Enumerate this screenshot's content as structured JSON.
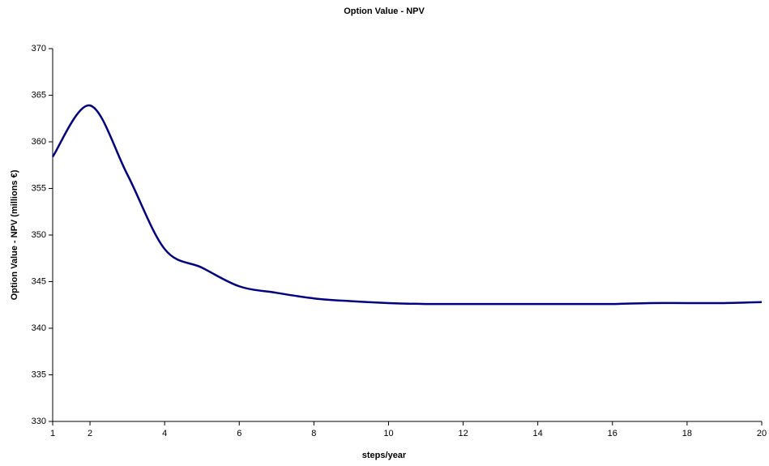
{
  "chart_data": {
    "type": "line",
    "title": "Option Value - NPV",
    "x_label": "steps/year",
    "y_label": "Option Value - NPV (millions €)",
    "x": [
      1,
      2,
      3,
      4,
      5,
      6,
      7,
      8,
      9,
      10,
      11,
      12,
      13,
      14,
      15,
      16,
      17,
      18,
      19,
      20
    ],
    "series": [
      {
        "name": "Option Value - NPV",
        "color": "#000080",
        "values": [
          358.4,
          363.9,
          356.5,
          348.5,
          346.5,
          344.5,
          343.8,
          343.2,
          342.9,
          342.7,
          342.6,
          342.6,
          342.6,
          342.6,
          342.6,
          342.6,
          342.7,
          342.7,
          342.7,
          342.8
        ]
      }
    ],
    "xlim": [
      1,
      20
    ],
    "xticks": [
      1,
      2,
      4,
      6,
      8,
      10,
      12,
      14,
      16,
      18,
      20
    ],
    "ylim": [
      330,
      370
    ],
    "yticks": [
      330,
      335,
      340,
      345,
      350,
      355,
      360,
      365,
      370
    ],
    "grid": false
  }
}
